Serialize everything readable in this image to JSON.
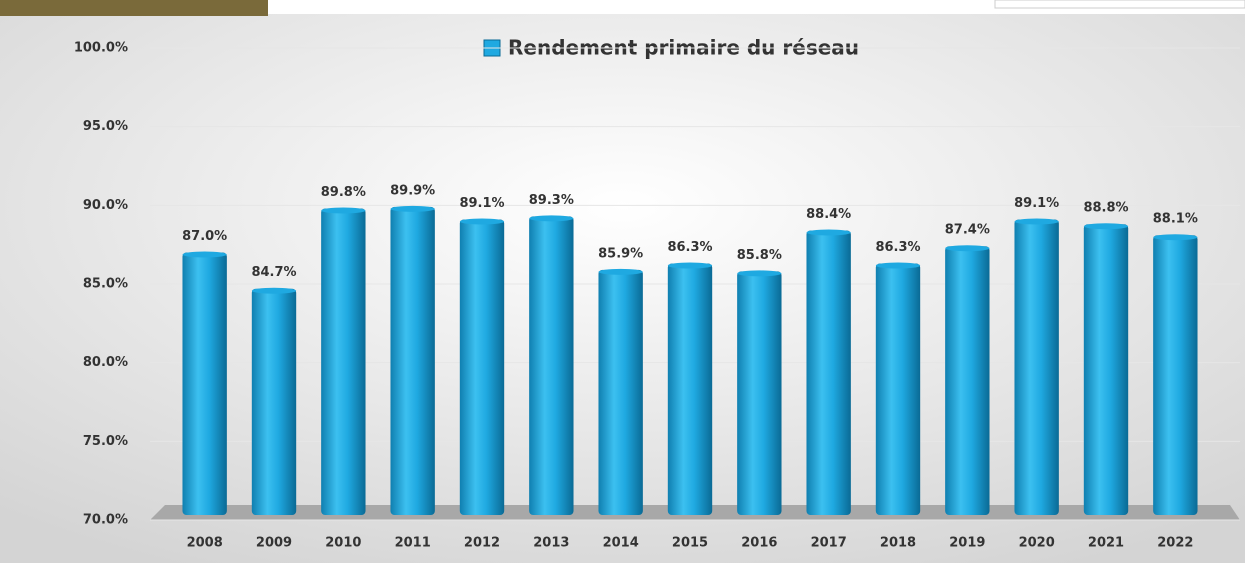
{
  "chart_data": {
    "type": "bar",
    "categories": [
      "2008",
      "2009",
      "2010",
      "2011",
      "2012",
      "2013",
      "2014",
      "2015",
      "2016",
      "2017",
      "2018",
      "2019",
      "2020",
      "2021",
      "2022"
    ],
    "series": [
      {
        "name": "Rendement primaire du réseau",
        "color": "#1fa9e1",
        "values": [
          87.0,
          84.7,
          89.8,
          89.9,
          89.1,
          89.3,
          85.9,
          86.3,
          85.8,
          88.4,
          86.3,
          87.4,
          89.1,
          88.8,
          88.1
        ],
        "value_labels": [
          "87.0%",
          "84.7%",
          "89.8%",
          "89.9%",
          "89.1%",
          "89.3%",
          "85.9%",
          "86.3%",
          "85.8%",
          "88.4%",
          "86.3%",
          "87.4%",
          "89.1%",
          "88.8%",
          "88.1%"
        ]
      }
    ],
    "ylim": [
      70,
      100
    ],
    "yticks": [
      {
        "value": 70,
        "label": "70.0%"
      },
      {
        "value": 75,
        "label": "75.0%"
      },
      {
        "value": 80,
        "label": "80.0%"
      },
      {
        "value": 85,
        "label": "85.0%"
      },
      {
        "value": 90,
        "label": "90.0%"
      },
      {
        "value": 95,
        "label": "95.0%"
      },
      {
        "value": 100,
        "label": "100.0%"
      }
    ],
    "grid": true,
    "legend": "top"
  }
}
